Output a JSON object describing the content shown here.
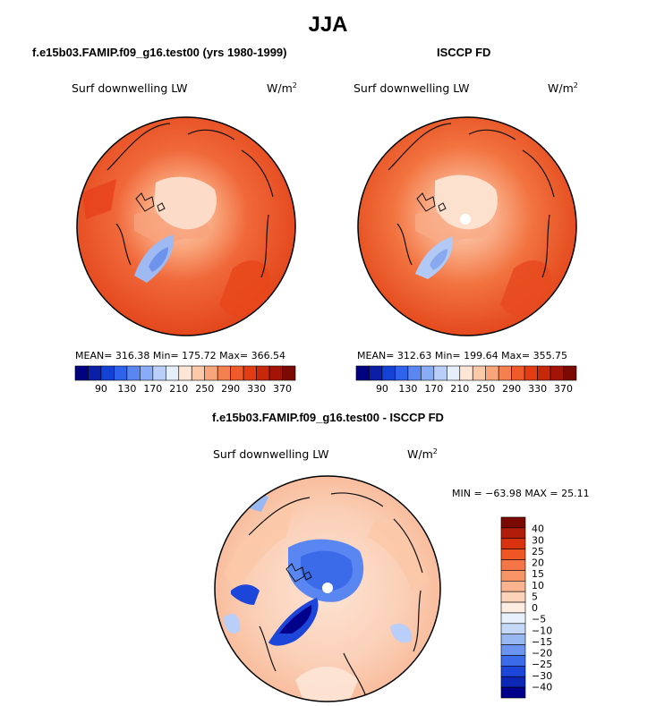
{
  "season_title": "JJA",
  "left_panel": {
    "title": "f.e15b03.FAMIP.f09_g16.test00 (yrs 1980-1999)",
    "field": "Surf downwelling LW",
    "units_base": "W/m",
    "units_exp": "2",
    "stats_text": "MEAN= 316.38   Min= 175.72   Max= 366.54"
  },
  "right_panel": {
    "title": "ISCCP FD",
    "field": "Surf downwelling LW",
    "units_base": "W/m",
    "units_exp": "2",
    "stats_text": "MEAN= 312.63   Min= 199.64   Max= 355.75"
  },
  "diff_panel": {
    "title": "f.e15b03.FAMIP.f09_g16.test00 - ISCCP FD",
    "field": "Surf downwelling LW",
    "units_base": "W/m",
    "units_exp": "2",
    "stats_text": "MIN = −63.98  MAX =   25.11"
  },
  "chart_data": [
    {
      "type": "heatmap",
      "projection": "north polar stereographic",
      "title": "f.e15b03.FAMIP.f09_g16.test00 (yrs 1980-1999)",
      "variable": "Surf downwelling LW",
      "units": "W/m2",
      "mean": 316.38,
      "min": 175.72,
      "max": 366.54,
      "colorbar": {
        "orientation": "horizontal",
        "levels": [
          90,
          130,
          170,
          210,
          250,
          290,
          330,
          370
        ],
        "colors": [
          "#000080",
          "#0a1ea8",
          "#1442d4",
          "#2f63eb",
          "#5a86f2",
          "#88acf7",
          "#b9cff9",
          "#e6eefa",
          "#fde6d6",
          "#fbc8a8",
          "#f9a57b",
          "#f4804f",
          "#ef5a2a",
          "#e43c12",
          "#c8280a",
          "#a31406",
          "#7a0a03"
        ]
      }
    },
    {
      "type": "heatmap",
      "projection": "north polar stereographic",
      "title": "ISCCP FD",
      "variable": "Surf downwelling LW",
      "units": "W/m2",
      "mean": 312.63,
      "min": 199.64,
      "max": 355.75,
      "colorbar": {
        "orientation": "horizontal",
        "levels": [
          90,
          130,
          170,
          210,
          250,
          290,
          330,
          370
        ],
        "colors": [
          "#000080",
          "#0a1ea8",
          "#1442d4",
          "#2f63eb",
          "#5a86f2",
          "#88acf7",
          "#b9cff9",
          "#e6eefa",
          "#fde6d6",
          "#fbc8a8",
          "#f9a57b",
          "#f4804f",
          "#ef5a2a",
          "#e43c12",
          "#c8280a",
          "#a31406",
          "#7a0a03"
        ]
      }
    },
    {
      "type": "heatmap",
      "projection": "north polar stereographic",
      "title": "f.e15b03.FAMIP.f09_g16.test00 - ISCCP FD",
      "variable": "Surf downwelling LW",
      "units": "W/m2",
      "min": -63.98,
      "max": 25.11,
      "colorbar": {
        "orientation": "vertical",
        "levels": [
          40,
          30,
          25,
          20,
          15,
          10,
          5,
          0,
          -5,
          -10,
          -15,
          -20,
          -25,
          -30,
          -40
        ],
        "colors": [
          "#7a0a03",
          "#b01d08",
          "#d8330e",
          "#ef5525",
          "#f47545",
          "#f79468",
          "#fab48e",
          "#fcd2b8",
          "#fdece1",
          "#e8f0fb",
          "#c5d8f7",
          "#98b8f3",
          "#6a94ef",
          "#3b6be9",
          "#1c45d9",
          "#0c27b6",
          "#00008a"
        ]
      }
    }
  ]
}
